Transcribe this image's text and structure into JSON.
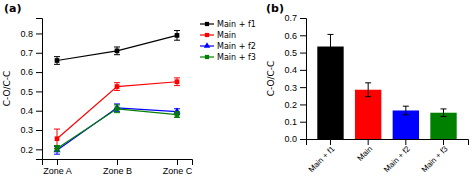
{
  "chart_data": [
    {
      "type": "line",
      "title": "(a)",
      "categories": [
        "Zone A",
        "Zone B",
        "Zone C"
      ],
      "series": [
        {
          "name": "Main + f1",
          "color": "black",
          "marker": "square",
          "values": [
            0.66,
            0.71,
            0.79
          ],
          "errors": [
            0.02,
            0.02,
            0.025
          ]
        },
        {
          "name": "Main",
          "color": "red",
          "marker": "square",
          "values": [
            0.255,
            0.525,
            0.55
          ],
          "errors": [
            0.05,
            0.02,
            0.02
          ]
        },
        {
          "name": "Main + f2",
          "color": "blue",
          "marker": "triangle",
          "values": [
            0.195,
            0.415,
            0.395
          ],
          "errors": [
            0.02,
            0.02,
            0.015
          ]
        },
        {
          "name": "Main + f3",
          "color": "green",
          "marker": "square",
          "values": [
            0.205,
            0.41,
            0.38
          ],
          "errors": [
            0.015,
            0.02,
            0.015
          ]
        }
      ],
      "y_label": "C-O/C-C",
      "ylim": [
        0.15,
        0.88
      ],
      "yticks": [
        0.2,
        0.3,
        0.4,
        0.5,
        0.6,
        0.7,
        0.8
      ],
      "legend": "upper right",
      "grid": false
    },
    {
      "type": "bar",
      "title": "(b)",
      "categories": [
        "Main + f1",
        "Main",
        "Main + f2",
        "Main + f3"
      ],
      "values": [
        0.535,
        0.285,
        0.165,
        0.152
      ],
      "errors": [
        0.07,
        0.04,
        0.025,
        0.022
      ],
      "colors": [
        "black",
        "red",
        "blue",
        "green"
      ],
      "y_label": "C-O/C-C",
      "ylim": [
        0.0,
        0.7
      ],
      "yticks": [
        {
          "value": 0.0,
          "label": "0.0"
        },
        0.1,
        0.2,
        0.3,
        0.4,
        0.5,
        0.6,
        0.7
      ],
      "grid": false
    }
  ]
}
